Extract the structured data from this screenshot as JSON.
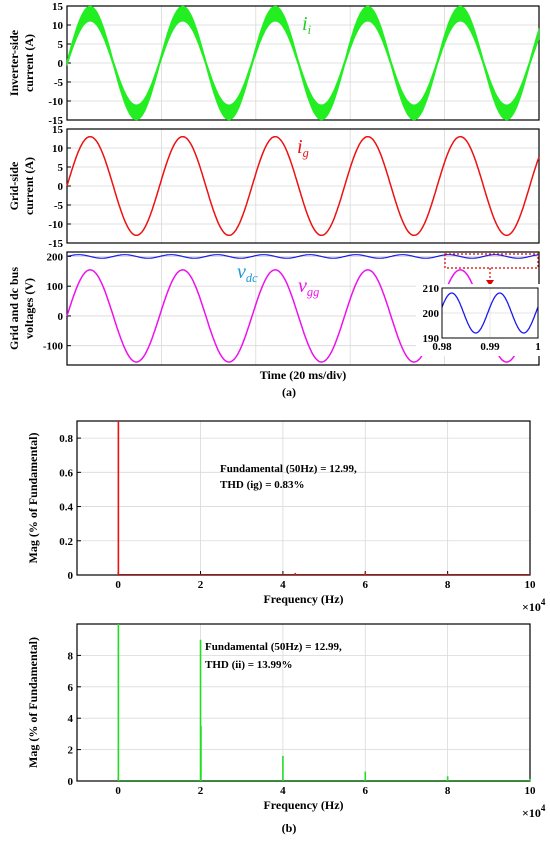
{
  "chart_data": [
    {
      "id": "a1",
      "type": "line",
      "ylabel_line1": "Inverter-side",
      "ylabel_line2": "current (A)",
      "ylim": [
        -15,
        15
      ],
      "yticks": [
        -15,
        -10,
        -5,
        0,
        5,
        10,
        15
      ],
      "xticks": [],
      "series": [
        {
          "name": "i",
          "sub": "i",
          "color": "#22ee22",
          "amplitude": 12.99,
          "freq_hz": 50,
          "ripple_amplitude": 2.0,
          "t_range_ms": [
            0,
            102
          ]
        }
      ],
      "grid": true
    },
    {
      "id": "a2",
      "type": "line",
      "ylabel_line1": "Grid-side",
      "ylabel_line2": "current (A)",
      "ylim": [
        -15,
        15
      ],
      "yticks": [
        -15,
        -10,
        -5,
        0,
        5,
        10,
        15
      ],
      "xticks": [],
      "series": [
        {
          "name": "i",
          "sub": "g",
          "color": "#ee1111",
          "amplitude": 12.99,
          "freq_hz": 50,
          "t_range_ms": [
            0,
            102
          ]
        }
      ],
      "grid": true
    },
    {
      "id": "a3",
      "type": "line",
      "ylabel_line1": "Grid and  dc bus",
      "ylabel_line2": "voltages (V)",
      "xlabel": "Time (20 ms/div)",
      "ylim": [
        -165,
        215
      ],
      "yticks": [
        -100,
        0,
        100,
        200
      ],
      "xticks": [],
      "series": [
        {
          "name": "v",
          "sub": "dc",
          "color": "#1a1aee",
          "offset": 200,
          "amplitude": 6,
          "freq_hz": 100
        },
        {
          "name": "v",
          "sub": "gg",
          "color": "#ee11ee",
          "amplitude": 155,
          "freq_hz": 50
        }
      ],
      "inset": {
        "xlim": [
          0.98,
          1.0
        ],
        "xticks": [
          "0.98",
          "0.99",
          "1"
        ],
        "ylim": [
          190,
          210
        ],
        "yticks": [
          "190",
          "200",
          "210"
        ],
        "series_color": "#1a1aee"
      },
      "grid": true
    },
    {
      "id": "b1",
      "type": "bar",
      "xlabel": "Frequency (Hz)",
      "ylabel": "Mag (% of Fundamental)",
      "xlim": [
        -1,
        10
      ],
      "ylim": [
        0,
        0.9
      ],
      "xticks": [
        "0",
        "2",
        "4",
        "6",
        "8",
        "10"
      ],
      "yticks": [
        "0",
        "0.2",
        "0.4",
        "0.6",
        "0.8"
      ],
      "x_multiplier": "×10",
      "x_multiplier_exp": "4",
      "color": "#ee1111",
      "annotation_line1": "Fundamental (50Hz) = 12.99,",
      "annotation_line2": "THD (ig) = 0.83%",
      "peaks": [
        {
          "x": 0.005,
          "value": 0.9
        },
        {
          "x": 4.3,
          "value": 0.012
        },
        {
          "x": 6.0,
          "value": 0.015
        },
        {
          "x": 8.0,
          "value": 0.008
        }
      ]
    },
    {
      "id": "b2",
      "type": "bar",
      "xlabel": "Frequency (Hz)",
      "ylabel": "Mag (% of Fundamental)",
      "xlim": [
        -1,
        10
      ],
      "ylim": [
        0,
        10
      ],
      "xticks": [
        "0",
        "2",
        "4",
        "6",
        "8",
        "10"
      ],
      "yticks": [
        "0",
        "2",
        "4",
        "6",
        "8"
      ],
      "x_multiplier": "×10",
      "x_multiplier_exp": "4",
      "color": "#22dd22",
      "annotation_line1": "Fundamental (50Hz) = 12.99,",
      "annotation_line2": "THD (ii) = 13.99%",
      "peaks": [
        {
          "x": 0.005,
          "value": 10
        },
        {
          "x": 2.0,
          "value": 9.0
        },
        {
          "x": 2.01,
          "value": 3.5
        },
        {
          "x": 4.0,
          "value": 1.6
        },
        {
          "x": 6.0,
          "value": 0.6
        },
        {
          "x": 8.0,
          "value": 0.3
        },
        {
          "x": 10.0,
          "value": 0.15
        }
      ]
    }
  ],
  "captions": {
    "a": "(a)",
    "b": "(b)"
  }
}
